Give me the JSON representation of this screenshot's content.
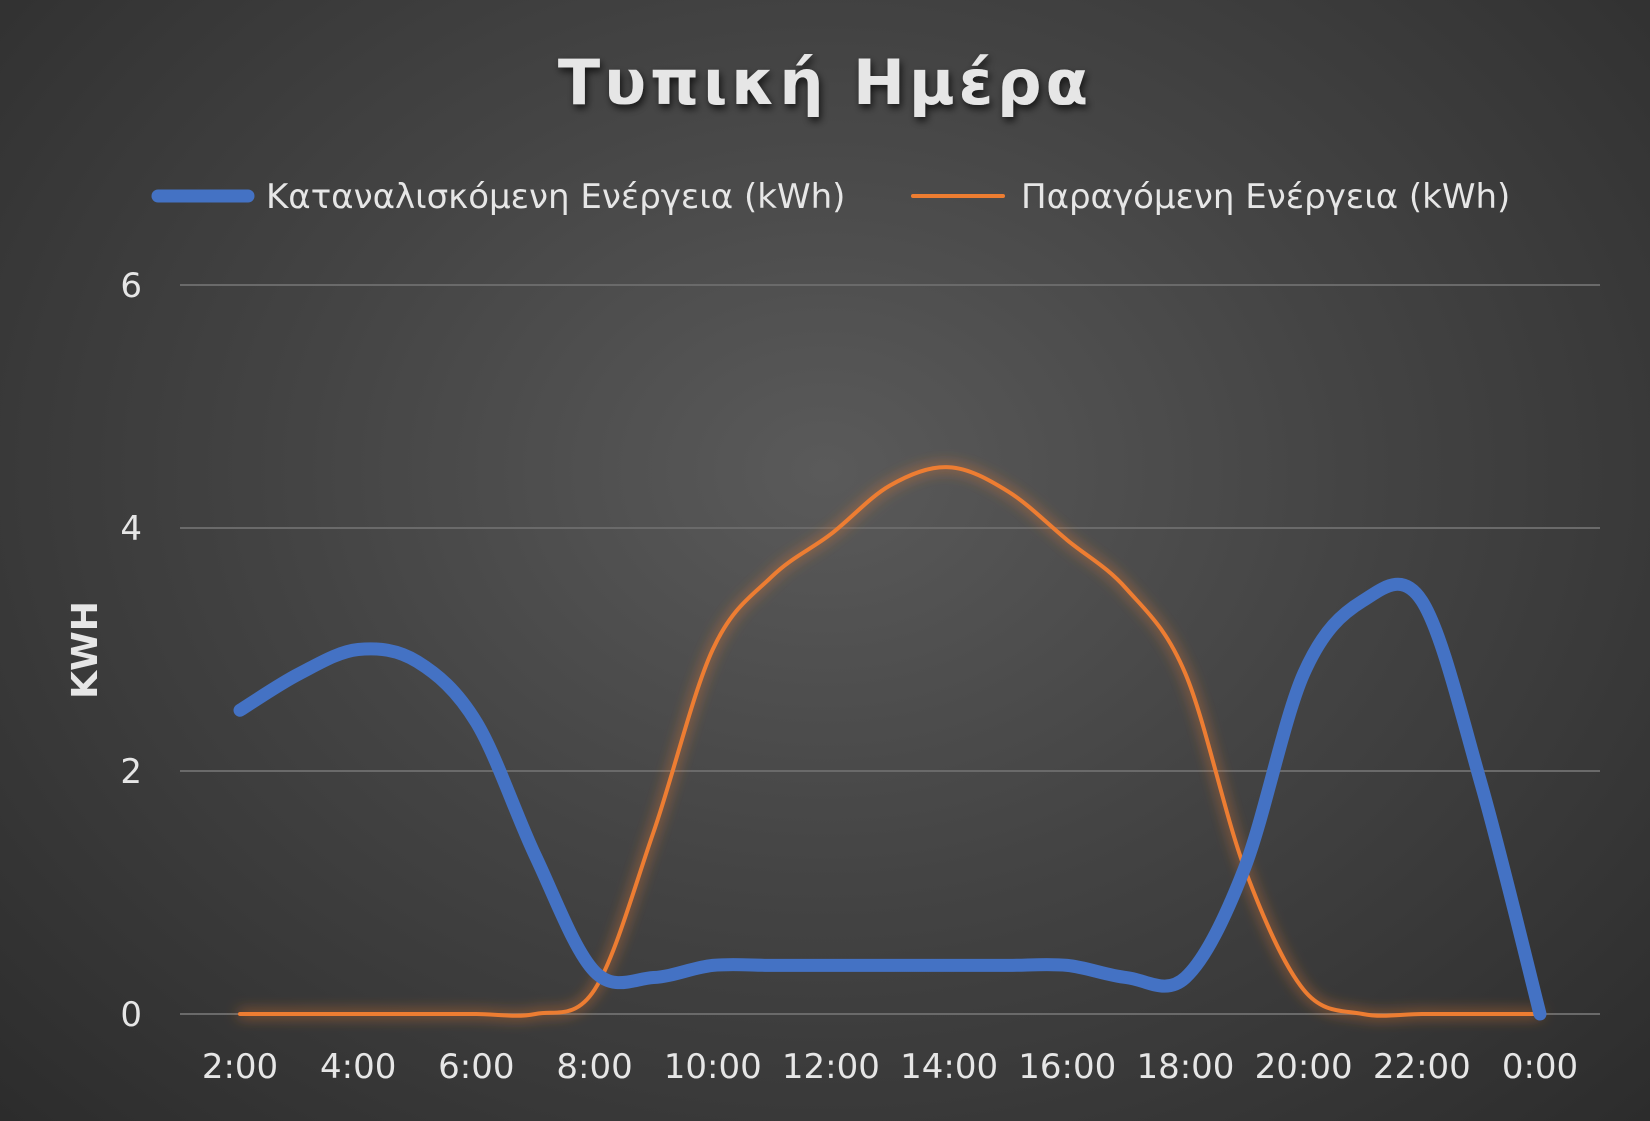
{
  "chart_data": {
    "type": "line",
    "title": "Τυπική Ημέρα",
    "xlabel": "",
    "ylabel": "KWH",
    "ylim": [
      0,
      6
    ],
    "yticks": [
      "0",
      "2",
      "4",
      "6"
    ],
    "categories": [
      "2:00",
      "4:00",
      "6:00",
      "8:00",
      "10:00",
      "12:00",
      "14:00",
      "16:00",
      "18:00",
      "20:00",
      "22:00",
      "0:00"
    ],
    "grid": true,
    "legend_position": "top",
    "smooth": true,
    "series": [
      {
        "name": "Καταναλισκόμενη Ενέργεια (kWh)",
        "color": "#4472C4",
        "x": [
          2,
          3,
          4,
          5,
          6,
          7,
          8,
          9,
          10,
          11,
          12,
          13,
          14,
          15,
          16,
          17,
          18,
          19,
          20,
          21,
          22,
          23,
          24
        ],
        "values": [
          2.5,
          2.8,
          3.0,
          2.9,
          2.4,
          1.3,
          0.35,
          0.3,
          0.4,
          0.4,
          0.4,
          0.4,
          0.4,
          0.4,
          0.4,
          0.3,
          0.3,
          1.2,
          2.8,
          3.4,
          3.4,
          1.9,
          0.0
        ]
      },
      {
        "name": "Παραγόμενη Ενέργεια (kWh)",
        "color": "#ED7D31",
        "x": [
          2,
          3,
          4,
          5,
          6,
          7,
          8,
          9,
          10,
          11,
          12,
          13,
          14,
          15,
          16,
          17,
          18,
          19,
          20,
          21,
          22,
          23,
          24
        ],
        "values": [
          0.0,
          0.0,
          0.0,
          0.0,
          0.0,
          0.0,
          0.2,
          1.5,
          3.0,
          3.6,
          3.95,
          4.35,
          4.5,
          4.3,
          3.9,
          3.5,
          2.8,
          1.2,
          0.2,
          0.0,
          0.0,
          0.0,
          0.0
        ]
      }
    ]
  }
}
